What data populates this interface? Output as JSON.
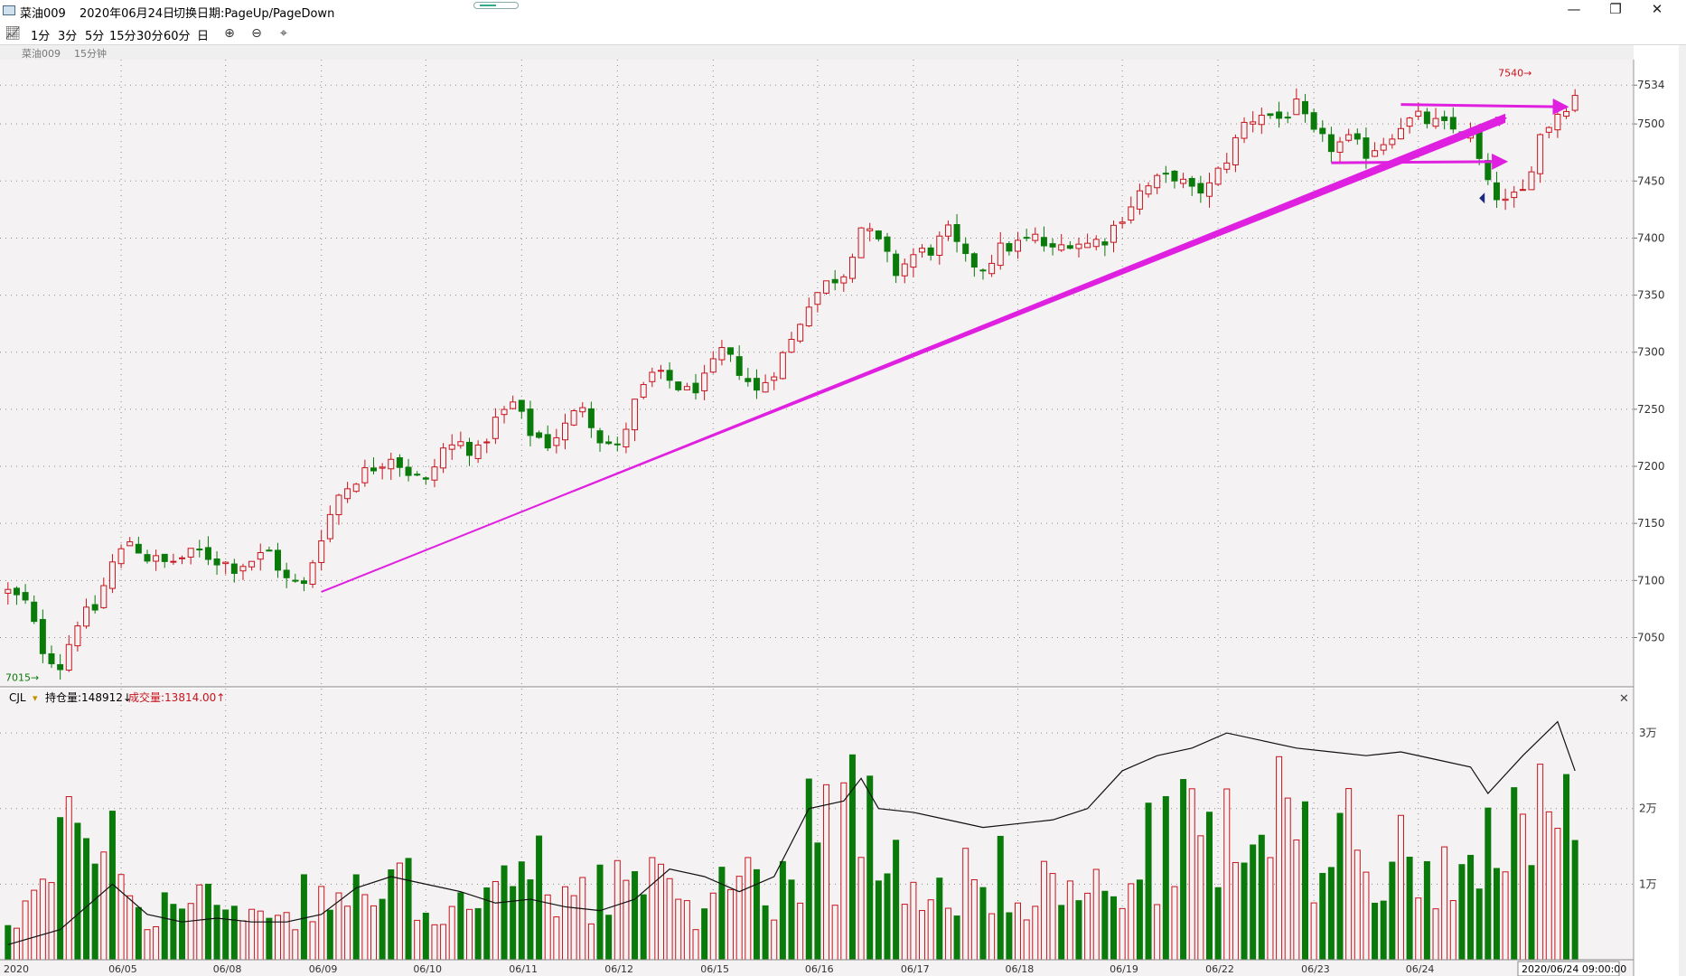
{
  "titlebar": {
    "instrument": "菜油009",
    "date": "2020年06月24日",
    "hint": "切换日期:PageUp/PageDown",
    "minimize_icon": "minimize-icon",
    "restore_icon": "restore-icon",
    "close_icon": "close-icon"
  },
  "toolbar": {
    "chart_icon": "line-chart-icon",
    "periods": [
      "1分",
      "3分",
      "5分",
      "15分",
      "30分",
      "60分",
      "日"
    ],
    "zoom_in_icon": "zoom-in-icon",
    "zoom_out_icon": "zoom-out-icon",
    "scale_icon": "scale-icon"
  },
  "sublabel": {
    "instrument": "菜油009",
    "period": "15分钟"
  },
  "colors": {
    "up": "#c8141e",
    "down": "#0a7a0a",
    "annotation": "#e020e0",
    "grid": "#8c8c8c",
    "background": "#f4f2f2"
  },
  "chart_data": [
    {
      "type": "candlestick",
      "title": "",
      "y_ticks": [
        7050,
        7100,
        7150,
        7200,
        7250,
        7300,
        7350,
        7400,
        7450,
        7500,
        7534
      ],
      "ylim": [
        7010,
        7550
      ],
      "max_label": "7540",
      "min_label": "7015",
      "x_ticks": [
        "06/05",
        "06/08",
        "06/09",
        "06/10",
        "06/11",
        "06/12",
        "06/15",
        "06/16",
        "06/17",
        "06/18",
        "06/19",
        "06/22",
        "06/23",
        "06/24"
      ],
      "x_start_label": "2020",
      "cursor_time": "2020/06/24 09:00:00",
      "close_path": [
        [
          0,
          7090
        ],
        [
          2,
          7080
        ],
        [
          4,
          7040
        ],
        [
          6,
          7025
        ],
        [
          8,
          7065
        ],
        [
          10,
          7075
        ],
        [
          12,
          7115
        ],
        [
          14,
          7135
        ],
        [
          16,
          7120
        ],
        [
          18,
          7115
        ],
        [
          20,
          7120
        ],
        [
          22,
          7125
        ],
        [
          24,
          7118
        ],
        [
          26,
          7112
        ],
        [
          28,
          7118
        ],
        [
          30,
          7125
        ],
        [
          32,
          7100
        ],
        [
          34,
          7095
        ],
        [
          36,
          7140
        ],
        [
          38,
          7175
        ],
        [
          40,
          7190
        ],
        [
          42,
          7200
        ],
        [
          44,
          7210
        ],
        [
          46,
          7195
        ],
        [
          48,
          7185
        ],
        [
          50,
          7215
        ],
        [
          52,
          7220
        ],
        [
          54,
          7212
        ],
        [
          56,
          7240
        ],
        [
          58,
          7255
        ],
        [
          60,
          7230
        ],
        [
          62,
          7220
        ],
        [
          64,
          7235
        ],
        [
          66,
          7255
        ],
        [
          68,
          7225
        ],
        [
          70,
          7215
        ],
        [
          72,
          7255
        ],
        [
          74,
          7280
        ],
        [
          76,
          7275
        ],
        [
          78,
          7265
        ],
        [
          80,
          7275
        ],
        [
          82,
          7300
        ],
        [
          84,
          7285
        ],
        [
          86,
          7265
        ],
        [
          88,
          7285
        ],
        [
          90,
          7310
        ],
        [
          92,
          7345
        ],
        [
          94,
          7360
        ],
        [
          96,
          7370
        ],
        [
          98,
          7410
        ],
        [
          100,
          7395
        ],
        [
          102,
          7370
        ],
        [
          104,
          7385
        ],
        [
          106,
          7390
        ],
        [
          108,
          7405
        ],
        [
          110,
          7380
        ],
        [
          112,
          7375
        ],
        [
          114,
          7390
        ],
        [
          116,
          7395
        ],
        [
          118,
          7400
        ],
        [
          120,
          7388
        ],
        [
          122,
          7398
        ],
        [
          124,
          7395
        ],
        [
          126,
          7400
        ],
        [
          128,
          7420
        ],
        [
          130,
          7440
        ],
        [
          132,
          7450
        ],
        [
          134,
          7455
        ],
        [
          136,
          7440
        ],
        [
          138,
          7445
        ],
        [
          140,
          7470
        ],
        [
          142,
          7500
        ],
        [
          144,
          7510
        ],
        [
          146,
          7505
        ],
        [
          148,
          7515
        ],
        [
          150,
          7490
        ],
        [
          152,
          7480
        ],
        [
          154,
          7485
        ],
        [
          156,
          7475
        ],
        [
          158,
          7485
        ],
        [
          160,
          7500
        ],
        [
          162,
          7505
        ],
        [
          164,
          7500
        ],
        [
          166,
          7495
        ],
        [
          168,
          7490
        ],
        [
          170,
          7445
        ],
        [
          172,
          7430
        ],
        [
          174,
          7440
        ],
        [
          176,
          7490
        ],
        [
          178,
          7510
        ],
        [
          180,
          7525
        ]
      ],
      "annotations": [
        {
          "type": "arrow",
          "from": [
            36,
            7090
          ],
          "to": [
            172,
            7505
          ]
        },
        {
          "type": "arrow",
          "from": [
            160,
            7517
          ],
          "to": [
            179,
            7515
          ]
        },
        {
          "type": "arrow",
          "from": [
            152,
            7466
          ],
          "to": [
            172,
            7467
          ]
        }
      ]
    },
    {
      "type": "bar",
      "title": "CJL",
      "open_interest_label": "持仓量:148912↓",
      "volume_label": "成交量:13814.00↑",
      "y_ticks": [
        "1万",
        "2万",
        "3万"
      ],
      "ylim": [
        0,
        33000
      ],
      "volume_path": [
        [
          0,
          7000
        ],
        [
          5,
          12000
        ],
        [
          10,
          26000
        ],
        [
          14,
          9000
        ],
        [
          20,
          8000
        ],
        [
          25,
          11000
        ],
        [
          30,
          6000
        ],
        [
          36,
          12000
        ],
        [
          40,
          9000
        ],
        [
          45,
          11000
        ],
        [
          50,
          10000
        ],
        [
          55,
          8000
        ],
        [
          60,
          14000
        ],
        [
          65,
          11000
        ],
        [
          70,
          12000
        ],
        [
          75,
          10000
        ],
        [
          80,
          9000
        ],
        [
          85,
          13000
        ],
        [
          90,
          12000
        ],
        [
          92,
          25000
        ],
        [
          95,
          16000
        ],
        [
          98,
          27000
        ],
        [
          100,
          18000
        ],
        [
          105,
          14000
        ],
        [
          110,
          12000
        ],
        [
          115,
          13000
        ],
        [
          120,
          11000
        ],
        [
          125,
          10000
        ],
        [
          130,
          15000
        ],
        [
          135,
          20000
        ],
        [
          140,
          18000
        ],
        [
          145,
          22000
        ],
        [
          150,
          18000
        ],
        [
          155,
          21000
        ],
        [
          160,
          15000
        ],
        [
          165,
          14000
        ],
        [
          168,
          28000
        ],
        [
          170,
          18000
        ],
        [
          175,
          19000
        ],
        [
          178,
          22000
        ],
        [
          180,
          16000
        ]
      ],
      "open_interest_path": [
        [
          0,
          2000
        ],
        [
          6,
          4000
        ],
        [
          12,
          10000
        ],
        [
          16,
          6000
        ],
        [
          20,
          5000
        ],
        [
          24,
          5500
        ],
        [
          28,
          5000
        ],
        [
          32,
          5000
        ],
        [
          36,
          6000
        ],
        [
          40,
          9500
        ],
        [
          44,
          11000
        ],
        [
          48,
          10000
        ],
        [
          52,
          9000
        ],
        [
          56,
          7500
        ],
        [
          60,
          8000
        ],
        [
          64,
          7000
        ],
        [
          68,
          6500
        ],
        [
          72,
          8000
        ],
        [
          76,
          12000
        ],
        [
          80,
          11000
        ],
        [
          84,
          9000
        ],
        [
          88,
          11000
        ],
        [
          92,
          20000
        ],
        [
          96,
          21000
        ],
        [
          98,
          24000
        ],
        [
          100,
          20000
        ],
        [
          104,
          19500
        ],
        [
          108,
          18500
        ],
        [
          112,
          17500
        ],
        [
          116,
          18000
        ],
        [
          120,
          18500
        ],
        [
          124,
          20000
        ],
        [
          128,
          25000
        ],
        [
          132,
          27000
        ],
        [
          136,
          28000
        ],
        [
          140,
          30000
        ],
        [
          144,
          29000
        ],
        [
          148,
          28000
        ],
        [
          152,
          27500
        ],
        [
          156,
          27000
        ],
        [
          160,
          27500
        ],
        [
          164,
          26500
        ],
        [
          168,
          25500
        ],
        [
          170,
          22000
        ],
        [
          174,
          27000
        ],
        [
          178,
          31500
        ],
        [
          180,
          25000
        ]
      ]
    }
  ]
}
